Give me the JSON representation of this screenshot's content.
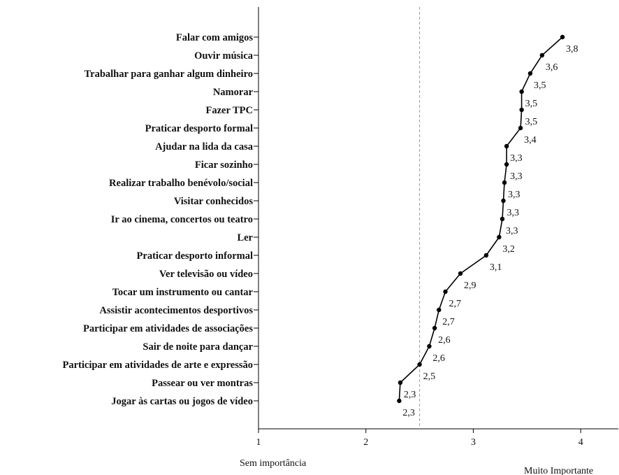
{
  "chart_data": {
    "type": "line",
    "orientation": "horizontal",
    "categories": [
      "Falar com amigos",
      "Ouvir música",
      "Trabalhar para ganhar algum dinheiro",
      "Namorar",
      "Fazer TPC",
      "Praticar desporto formal",
      "Ajudar na lida da casa",
      "Ficar sozinho",
      "Realizar trabalho benévolo/social",
      "Visitar conhecidos",
      "Ir ao cinema, concertos ou teatro",
      "Ler",
      "Praticar desporto informal",
      "Ver televisão ou vídeo",
      "Tocar um instrumento ou cantar",
      "Assistir acontecimentos desportivos",
      "Participar em atividades de associações",
      "Sair de noite para dançar",
      "Participar em atividades de arte e expressão",
      "Passear ou ver montras",
      "Jogar às cartas ou jogos de vídeo"
    ],
    "values": [
      3.83,
      3.64,
      3.53,
      3.45,
      3.45,
      3.44,
      3.31,
      3.31,
      3.29,
      3.28,
      3.27,
      3.24,
      3.12,
      2.88,
      2.74,
      2.68,
      2.64,
      2.59,
      2.5,
      2.32,
      2.31
    ],
    "value_labels": [
      "3,8",
      "3,6",
      "3,5",
      "3,5",
      "3,5",
      "3,4",
      "3,3",
      "3,3",
      "3,3",
      "3,3",
      "3,3",
      "3,2",
      "3,1",
      "2,9",
      "2,7",
      "2,7",
      "2,6",
      "2,6",
      "2,5",
      "2,3",
      "2,3"
    ],
    "xlim": [
      1,
      4.35
    ],
    "x_ticks": [
      "1",
      "2",
      "3",
      "4"
    ],
    "reference_line": 2.5,
    "x_end_labels": {
      "low": "Sem importância",
      "high": "Muito Importante"
    },
    "title": "",
    "xlabel": "",
    "ylabel": "",
    "grid": false,
    "legend": "none"
  }
}
